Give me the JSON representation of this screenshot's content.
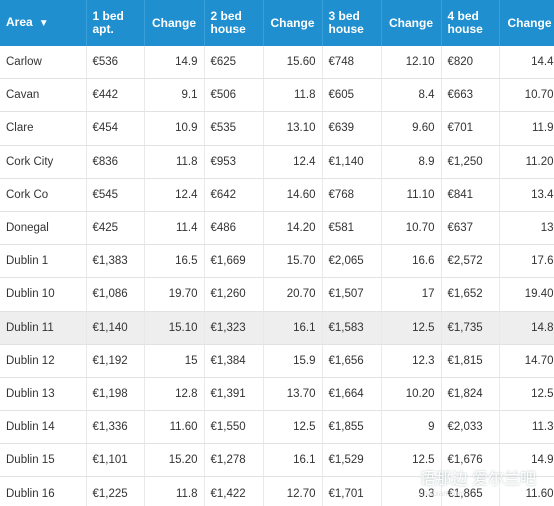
{
  "headers": {
    "area": "Area",
    "bed1": [
      "1 bed",
      "apt."
    ],
    "change": "Change",
    "bed2": [
      "2 bed",
      "house"
    ],
    "bed3": [
      "3 bed",
      "house"
    ],
    "bed4": [
      "4 bed",
      "house"
    ]
  },
  "rows": [
    {
      "area": "Carlow",
      "b1": "€536",
      "c1": "14.9",
      "b2": "€625",
      "c2": "15.60",
      "b3": "€748",
      "c3": "12.10",
      "b4": "€820",
      "c4": "14.4"
    },
    {
      "area": "Cavan",
      "b1": "€442",
      "c1": "9.1",
      "b2": "€506",
      "c2": "11.8",
      "b3": "€605",
      "c3": "8.4",
      "b4": "€663",
      "c4": "10.70"
    },
    {
      "area": "Clare",
      "b1": "€454",
      "c1": "10.9",
      "b2": "€535",
      "c2": "13.10",
      "b3": "€639",
      "c3": "9.60",
      "b4": "€701",
      "c4": "11.9"
    },
    {
      "area": "Cork City",
      "b1": "€836",
      "c1": "11.8",
      "b2": "€953",
      "c2": "12.4",
      "b3": "€1,140",
      "c3": "8.9",
      "b4": "€1,250",
      "c4": "11.20"
    },
    {
      "area": "Cork Co",
      "b1": "€545",
      "c1": "12.4",
      "b2": "€642",
      "c2": "14.60",
      "b3": "€768",
      "c3": "11.10",
      "b4": "€841",
      "c4": "13.4"
    },
    {
      "area": "Donegal",
      "b1": "€425",
      "c1": "11.4",
      "b2": "€486",
      "c2": "14.20",
      "b3": "€581",
      "c3": "10.70",
      "b4": "€637",
      "c4": "13"
    },
    {
      "area": "Dublin 1",
      "b1": "€1,383",
      "c1": "16.5",
      "b2": "€1,669",
      "c2": "15.70",
      "b3": "€2,065",
      "c3": "16.6",
      "b4": "€2,572",
      "c4": "17.6"
    },
    {
      "area": "Dublin 10",
      "b1": "€1,086",
      "c1": "19.70",
      "b2": "€1,260",
      "c2": "20.70",
      "b3": "€1,507",
      "c3": "17",
      "b4": "€1,652",
      "c4": "19.40"
    },
    {
      "area": "Dublin 11",
      "b1": "€1,140",
      "c1": "15.10",
      "b2": "€1,323",
      "c2": "16.1",
      "b3": "€1,583",
      "c3": "12.5",
      "b4": "€1,735",
      "c4": "14.8"
    },
    {
      "area": "Dublin 12",
      "b1": "€1,192",
      "c1": "15",
      "b2": "€1,384",
      "c2": "15.9",
      "b3": "€1,656",
      "c3": "12.3",
      "b4": "€1,815",
      "c4": "14.70"
    },
    {
      "area": "Dublin 13",
      "b1": "€1,198",
      "c1": "12.8",
      "b2": "€1,391",
      "c2": "13.70",
      "b3": "€1,664",
      "c3": "10.20",
      "b4": "€1,824",
      "c4": "12.5"
    },
    {
      "area": "Dublin 14",
      "b1": "€1,336",
      "c1": "11.60",
      "b2": "€1,550",
      "c2": "12.5",
      "b3": "€1,855",
      "c3": "9",
      "b4": "€2,033",
      "c4": "11.3"
    },
    {
      "area": "Dublin 15",
      "b1": "€1,101",
      "c1": "15.20",
      "b2": "€1,278",
      "c2": "16.1",
      "b3": "€1,529",
      "c3": "12.5",
      "b4": "€1,676",
      "c4": "14.9"
    },
    {
      "area": "Dublin 16",
      "b1": "€1,225",
      "c1": "11.8",
      "b2": "€1,422",
      "c2": "12.70",
      "b3": "€1,701",
      "c3": "9.3",
      "b4": "€1,865",
      "c4": "11.60"
    }
  ],
  "highlighted_row": "Dublin 11",
  "watermark": {
    "main": "语那边  爱尔兰吧",
    "sub": "finabian.com"
  },
  "colors": {
    "header_bg": "#1f8fd0",
    "header_text": "#ffffff",
    "row_highlight": "#eeeeee"
  }
}
